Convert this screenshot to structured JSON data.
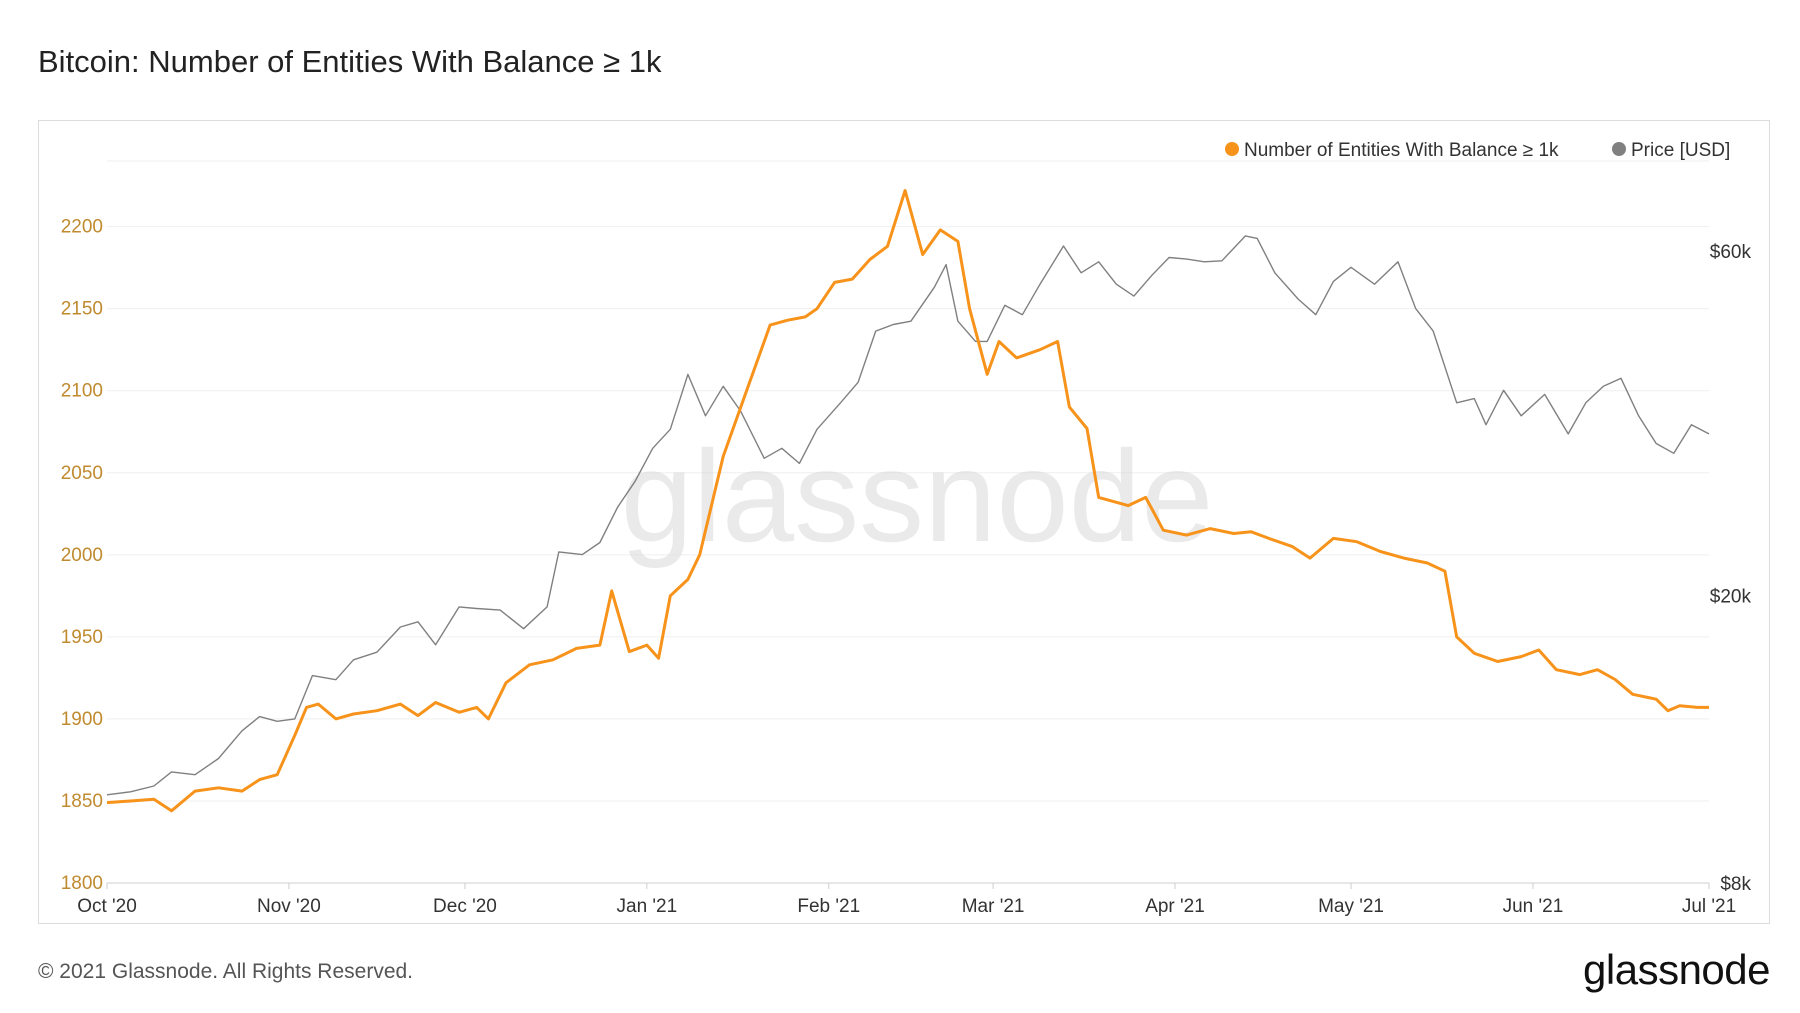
{
  "page": {
    "title": "Bitcoin: Number of Entities With Balance ≥ 1k",
    "copyright": "© 2021 Glassnode. All Rights Reserved.",
    "logo_text": "glassnode",
    "watermark": "glassnode"
  },
  "chart_data": {
    "type": "line",
    "title": "Bitcoin: Number of Entities With Balance ≥ 1k",
    "x_tick_labels": [
      "Oct '20",
      "Nov '20",
      "Dec '20",
      "Jan '21",
      "Feb '21",
      "Mar '21",
      "Apr '21",
      "May '21",
      "Jun '21",
      "Jul '21"
    ],
    "x_tick_dates": [
      "2020-10-01",
      "2020-11-01",
      "2020-12-01",
      "2021-01-01",
      "2021-02-01",
      "2021-03-01",
      "2021-04-01",
      "2021-05-01",
      "2021-06-01",
      "2021-07-01"
    ],
    "x_range": [
      "2020-10-01",
      "2021-07-01"
    ],
    "y_left": {
      "ticks": [
        1800,
        1850,
        1900,
        1950,
        2000,
        2050,
        2100,
        2150,
        2200
      ],
      "tick_labels": [
        "1800",
        "1850",
        "1900",
        "1950",
        "2000",
        "2050",
        "2100",
        "2150",
        "2200"
      ],
      "range": [
        1800,
        2240
      ]
    },
    "y_right": {
      "scale": "log",
      "ticks": [
        8000,
        20000,
        60000
      ],
      "tick_labels": [
        "$8k",
        "$20k",
        "$60k"
      ],
      "range": [
        8000,
        80000
      ]
    },
    "grid": true,
    "legend_position": "top-right",
    "legend": [
      {
        "label": "Number of Entities With Balance ≥ 1k",
        "color": "#f7931a"
      },
      {
        "label": "Price [USD]",
        "color": "#808080"
      }
    ],
    "series": [
      {
        "name": "Number of Entities With Balance ≥ 1k",
        "axis": "left",
        "color": "#f7931a",
        "points": [
          [
            "2020-10-01",
            1849
          ],
          [
            "2020-10-05",
            1850
          ],
          [
            "2020-10-09",
            1851
          ],
          [
            "2020-10-12",
            1844
          ],
          [
            "2020-10-16",
            1856
          ],
          [
            "2020-10-20",
            1858
          ],
          [
            "2020-10-24",
            1856
          ],
          [
            "2020-10-27",
            1863
          ],
          [
            "2020-10-30",
            1866
          ],
          [
            "2020-11-02",
            1890
          ],
          [
            "2020-11-04",
            1907
          ],
          [
            "2020-11-06",
            1909
          ],
          [
            "2020-11-09",
            1900
          ],
          [
            "2020-11-12",
            1903
          ],
          [
            "2020-11-16",
            1905
          ],
          [
            "2020-11-20",
            1909
          ],
          [
            "2020-11-23",
            1902
          ],
          [
            "2020-11-26",
            1910
          ],
          [
            "2020-11-30",
            1904
          ],
          [
            "2020-12-03",
            1907
          ],
          [
            "2020-12-05",
            1900
          ],
          [
            "2020-12-08",
            1922
          ],
          [
            "2020-12-12",
            1933
          ],
          [
            "2020-12-16",
            1936
          ],
          [
            "2020-12-20",
            1943
          ],
          [
            "2020-12-24",
            1945
          ],
          [
            "2020-12-26",
            1978
          ],
          [
            "2020-12-29",
            1941
          ],
          [
            "2021-01-01",
            1945
          ],
          [
            "2021-01-03",
            1937
          ],
          [
            "2021-01-05",
            1975
          ],
          [
            "2021-01-08",
            1985
          ],
          [
            "2021-01-10",
            2000
          ],
          [
            "2021-01-14",
            2060
          ],
          [
            "2021-01-18",
            2100
          ],
          [
            "2021-01-22",
            2140
          ],
          [
            "2021-01-25",
            2143
          ],
          [
            "2021-01-28",
            2145
          ],
          [
            "2021-01-30",
            2150
          ],
          [
            "2021-02-02",
            2166
          ],
          [
            "2021-02-05",
            2168
          ],
          [
            "2021-02-08",
            2180
          ],
          [
            "2021-02-11",
            2188
          ],
          [
            "2021-02-14",
            2222
          ],
          [
            "2021-02-17",
            2183
          ],
          [
            "2021-02-20",
            2198
          ],
          [
            "2021-02-23",
            2191
          ],
          [
            "2021-02-25",
            2150
          ],
          [
            "2021-02-28",
            2110
          ],
          [
            "2021-03-02",
            2130
          ],
          [
            "2021-03-05",
            2120
          ],
          [
            "2021-03-09",
            2125
          ],
          [
            "2021-03-12",
            2130
          ],
          [
            "2021-03-14",
            2090
          ],
          [
            "2021-03-17",
            2077
          ],
          [
            "2021-03-19",
            2035
          ],
          [
            "2021-03-24",
            2030
          ],
          [
            "2021-03-27",
            2035
          ],
          [
            "2021-03-30",
            2015
          ],
          [
            "2021-04-03",
            2012
          ],
          [
            "2021-04-07",
            2016
          ],
          [
            "2021-04-11",
            2013
          ],
          [
            "2021-04-14",
            2014
          ],
          [
            "2021-04-17",
            2010
          ],
          [
            "2021-04-21",
            2005
          ],
          [
            "2021-04-24",
            1998
          ],
          [
            "2021-04-28",
            2010
          ],
          [
            "2021-05-02",
            2008
          ],
          [
            "2021-05-06",
            2002
          ],
          [
            "2021-05-10",
            1998
          ],
          [
            "2021-05-14",
            1995
          ],
          [
            "2021-05-17",
            1990
          ],
          [
            "2021-05-19",
            1950
          ],
          [
            "2021-05-22",
            1940
          ],
          [
            "2021-05-26",
            1935
          ],
          [
            "2021-05-30",
            1938
          ],
          [
            "2021-06-02",
            1942
          ],
          [
            "2021-06-05",
            1930
          ],
          [
            "2021-06-09",
            1927
          ],
          [
            "2021-06-12",
            1930
          ],
          [
            "2021-06-15",
            1924
          ],
          [
            "2021-06-18",
            1915
          ],
          [
            "2021-06-22",
            1912
          ],
          [
            "2021-06-24",
            1905
          ],
          [
            "2021-06-26",
            1908
          ],
          [
            "2021-06-29",
            1907
          ],
          [
            "2021-07-01",
            1907
          ]
        ]
      },
      {
        "name": "Price [USD]",
        "axis": "right",
        "color": "#808080",
        "points": [
          [
            "2020-10-01",
            10600
          ],
          [
            "2020-10-05",
            10700
          ],
          [
            "2020-10-09",
            10900
          ],
          [
            "2020-10-12",
            11400
          ],
          [
            "2020-10-16",
            11300
          ],
          [
            "2020-10-20",
            11900
          ],
          [
            "2020-10-24",
            13000
          ],
          [
            "2020-10-27",
            13600
          ],
          [
            "2020-10-30",
            13400
          ],
          [
            "2020-11-02",
            13500
          ],
          [
            "2020-11-05",
            15500
          ],
          [
            "2020-11-09",
            15300
          ],
          [
            "2020-11-12",
            16300
          ],
          [
            "2020-11-16",
            16700
          ],
          [
            "2020-11-20",
            18100
          ],
          [
            "2020-11-23",
            18400
          ],
          [
            "2020-11-26",
            17100
          ],
          [
            "2020-11-30",
            19300
          ],
          [
            "2020-12-03",
            19200
          ],
          [
            "2020-12-07",
            19100
          ],
          [
            "2020-12-11",
            18000
          ],
          [
            "2020-12-15",
            19300
          ],
          [
            "2020-12-17",
            23000
          ],
          [
            "2020-12-21",
            22800
          ],
          [
            "2020-12-24",
            23700
          ],
          [
            "2020-12-27",
            26500
          ],
          [
            "2020-12-30",
            28800
          ],
          [
            "2021-01-02",
            32000
          ],
          [
            "2021-01-05",
            34000
          ],
          [
            "2021-01-08",
            40500
          ],
          [
            "2021-01-11",
            35500
          ],
          [
            "2021-01-14",
            39000
          ],
          [
            "2021-01-17",
            36000
          ],
          [
            "2021-01-21",
            31000
          ],
          [
            "2021-01-24",
            32000
          ],
          [
            "2021-01-27",
            30500
          ],
          [
            "2021-01-30",
            34000
          ],
          [
            "2021-02-03",
            37000
          ],
          [
            "2021-02-06",
            39500
          ],
          [
            "2021-02-09",
            46500
          ],
          [
            "2021-02-12",
            47500
          ],
          [
            "2021-02-15",
            48000
          ],
          [
            "2021-02-19",
            53500
          ],
          [
            "2021-02-21",
            57500
          ],
          [
            "2021-02-23",
            48000
          ],
          [
            "2021-02-26",
            45000
          ],
          [
            "2021-02-28",
            45000
          ],
          [
            "2021-03-03",
            50500
          ],
          [
            "2021-03-06",
            49000
          ],
          [
            "2021-03-09",
            54000
          ],
          [
            "2021-03-13",
            61000
          ],
          [
            "2021-03-16",
            56000
          ],
          [
            "2021-03-19",
            58000
          ],
          [
            "2021-03-22",
            54000
          ],
          [
            "2021-03-25",
            52000
          ],
          [
            "2021-03-28",
            55500
          ],
          [
            "2021-03-31",
            58800
          ],
          [
            "2021-04-03",
            58500
          ],
          [
            "2021-04-06",
            58000
          ],
          [
            "2021-04-09",
            58200
          ],
          [
            "2021-04-13",
            63000
          ],
          [
            "2021-04-15",
            62500
          ],
          [
            "2021-04-18",
            56000
          ],
          [
            "2021-04-22",
            51500
          ],
          [
            "2021-04-25",
            49000
          ],
          [
            "2021-04-28",
            54500
          ],
          [
            "2021-05-01",
            57000
          ],
          [
            "2021-05-05",
            54000
          ],
          [
            "2021-05-09",
            58000
          ],
          [
            "2021-05-12",
            50000
          ],
          [
            "2021-05-15",
            46500
          ],
          [
            "2021-05-19",
            37000
          ],
          [
            "2021-05-22",
            37500
          ],
          [
            "2021-05-24",
            34500
          ],
          [
            "2021-05-27",
            38500
          ],
          [
            "2021-05-30",
            35500
          ],
          [
            "2021-06-03",
            38000
          ],
          [
            "2021-06-07",
            33500
          ],
          [
            "2021-06-10",
            37000
          ],
          [
            "2021-06-13",
            39000
          ],
          [
            "2021-06-16",
            40000
          ],
          [
            "2021-06-19",
            35500
          ],
          [
            "2021-06-22",
            32500
          ],
          [
            "2021-06-25",
            31500
          ],
          [
            "2021-06-28",
            34500
          ],
          [
            "2021-07-01",
            33500
          ]
        ]
      }
    ]
  }
}
